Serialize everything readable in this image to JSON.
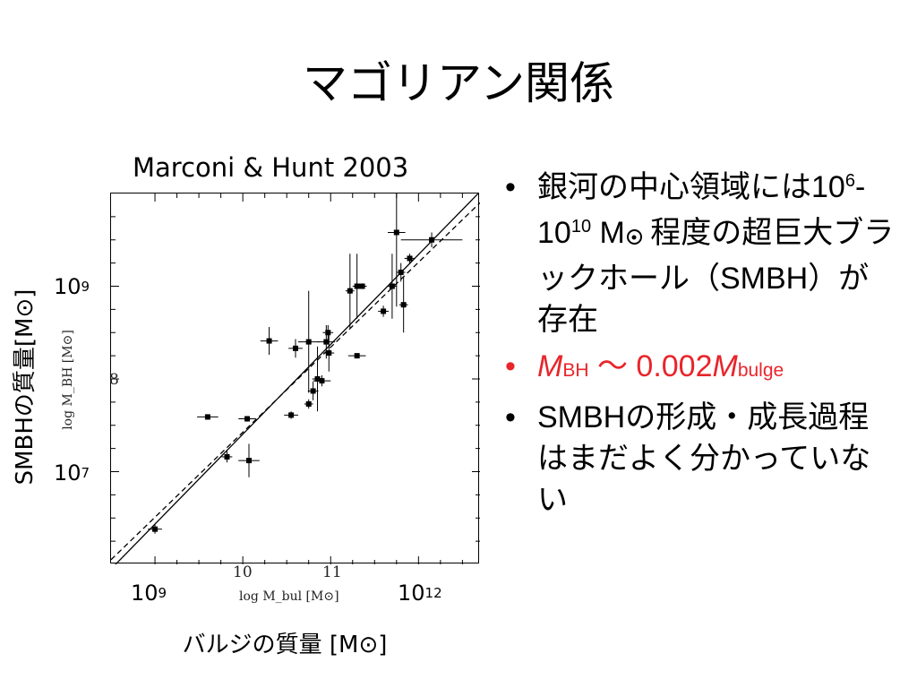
{
  "slide": {
    "title": "マゴリアン関係"
  },
  "figure": {
    "caption": "Marconi & Hunt 2003",
    "y_axis_label": "SMBHの質量[M⊙]",
    "x_axis_label": "バルジの質量 [M⊙]",
    "y_tick_high": {
      "base": "10",
      "exp": "9"
    },
    "y_tick_low": {
      "base": "10",
      "exp": "7"
    },
    "x_tick_low": {
      "base": "10",
      "exp": "9"
    },
    "x_tick_high": {
      "base": "10",
      "exp": "12"
    },
    "inner_y_label": "log M_BH [M⊙]",
    "inner_x_label": "log M_bul [M⊙]",
    "inner_y_tick": "8",
    "inner_x_tick_10": "10",
    "inner_x_tick_11": "11"
  },
  "chart_data": {
    "type": "scatter",
    "xlabel": "log M_bul [M⊙]",
    "ylabel": "log M_BH [M⊙]",
    "xlim": [
      8.5,
      12.7
    ],
    "ylim": [
      6.0,
      10.0
    ],
    "x_ticks": [
      10,
      11
    ],
    "y_ticks": [
      8
    ],
    "series": [
      {
        "points": [
          {
            "x": 9.0,
            "y": 6.38,
            "xe": 0.08,
            "ye": 0.05
          },
          {
            "x": 9.6,
            "y": 7.59,
            "xe": 0.12,
            "ye": 0.03
          },
          {
            "x": 9.82,
            "y": 7.16,
            "xe": 0.06,
            "ye": 0.06
          },
          {
            "x": 10.05,
            "y": 7.57,
            "xe": 0.1,
            "ye": 0.03
          },
          {
            "x": 10.07,
            "y": 7.12,
            "xe": 0.12,
            "ye": 0.18
          },
          {
            "x": 10.3,
            "y": 8.41,
            "xe": 0.1,
            "ye": 0.15
          },
          {
            "x": 10.55,
            "y": 7.61,
            "xe": 0.08,
            "ye": 0.04
          },
          {
            "x": 10.6,
            "y": 8.33,
            "xe": 0.08,
            "ye": 0.1
          },
          {
            "x": 10.75,
            "y": 7.73,
            "xe": 0.05,
            "ye": 0.05
          },
          {
            "x": 10.75,
            "y": 8.4,
            "xe": 0.12,
            "ye": 0.55
          },
          {
            "x": 10.8,
            "y": 7.87,
            "xe": 0.06,
            "ye": 0.1
          },
          {
            "x": 10.85,
            "y": 8.0,
            "xe": 0.06,
            "ye": 0.35
          },
          {
            "x": 10.9,
            "y": 7.98,
            "xe": 0.1,
            "ye": 0.06
          },
          {
            "x": 10.95,
            "y": 8.4,
            "xe": 0.1,
            "ye": 0.18
          },
          {
            "x": 10.97,
            "y": 8.5,
            "xe": 0.06,
            "ye": 0.08
          },
          {
            "x": 10.98,
            "y": 8.28,
            "xe": 0.06,
            "ye": 0.2
          },
          {
            "x": 11.3,
            "y": 8.25,
            "xe": 0.1,
            "ye": 0.02
          },
          {
            "x": 11.22,
            "y": 8.95,
            "xe": 0.05,
            "ye": 0.4
          },
          {
            "x": 11.3,
            "y": 9.0,
            "xe": 0.05,
            "ye": 0.35
          },
          {
            "x": 11.36,
            "y": 9.0,
            "xe": 0.05,
            "ye": 0.03
          },
          {
            "x": 11.6,
            "y": 8.73,
            "xe": 0.06,
            "ye": 0.06
          },
          {
            "x": 11.7,
            "y": 9.0,
            "xe": 0.05,
            "ye": 0.35
          },
          {
            "x": 11.75,
            "y": 9.58,
            "xe": 0.1,
            "ye": 0.8
          },
          {
            "x": 11.8,
            "y": 9.15,
            "xe": 0.05,
            "ye": 0.1
          },
          {
            "x": 11.83,
            "y": 8.8,
            "xe": 0.05,
            "ye": 0.3
          },
          {
            "x": 11.9,
            "y": 9.3,
            "xe": 0.06,
            "ye": 0.05
          },
          {
            "x": 12.15,
            "y": 9.5,
            "xe": 0.35,
            "ye": 0.08
          }
        ]
      }
    ],
    "fit_lines": [
      {
        "style": "solid",
        "x": [
          8.5,
          12.7
        ],
        "y": [
          5.95,
          10.02
        ]
      },
      {
        "style": "dashed",
        "x": [
          8.5,
          12.7
        ],
        "y": [
          6.05,
          9.9
        ]
      }
    ]
  },
  "bullets": [
    {
      "parts": [
        {
          "t": "銀河の中心領域には10"
        },
        {
          "t": "6",
          "sup": true
        },
        {
          "t": "-10"
        },
        {
          "t": "10",
          "sup": true
        },
        {
          "t": " M"
        },
        {
          "sun": true
        },
        {
          "t": " 程度の超巨大ブラックホール（SMBH）が存在"
        }
      ]
    },
    {
      "red": true,
      "parts": [
        {
          "t": "M",
          "italic": true
        },
        {
          "t": "BH",
          "sub": true
        },
        {
          "t": " ～ 0.002"
        },
        {
          "t": "M",
          "italic": true
        },
        {
          "t": "bulge",
          "sub": true
        }
      ]
    },
    {
      "parts": [
        {
          "t": "SMBHの形成・成長過程はまだよく分かっていない"
        }
      ]
    }
  ],
  "colors": {
    "bullet_red": "#e8252a",
    "marker": "#000000"
  }
}
